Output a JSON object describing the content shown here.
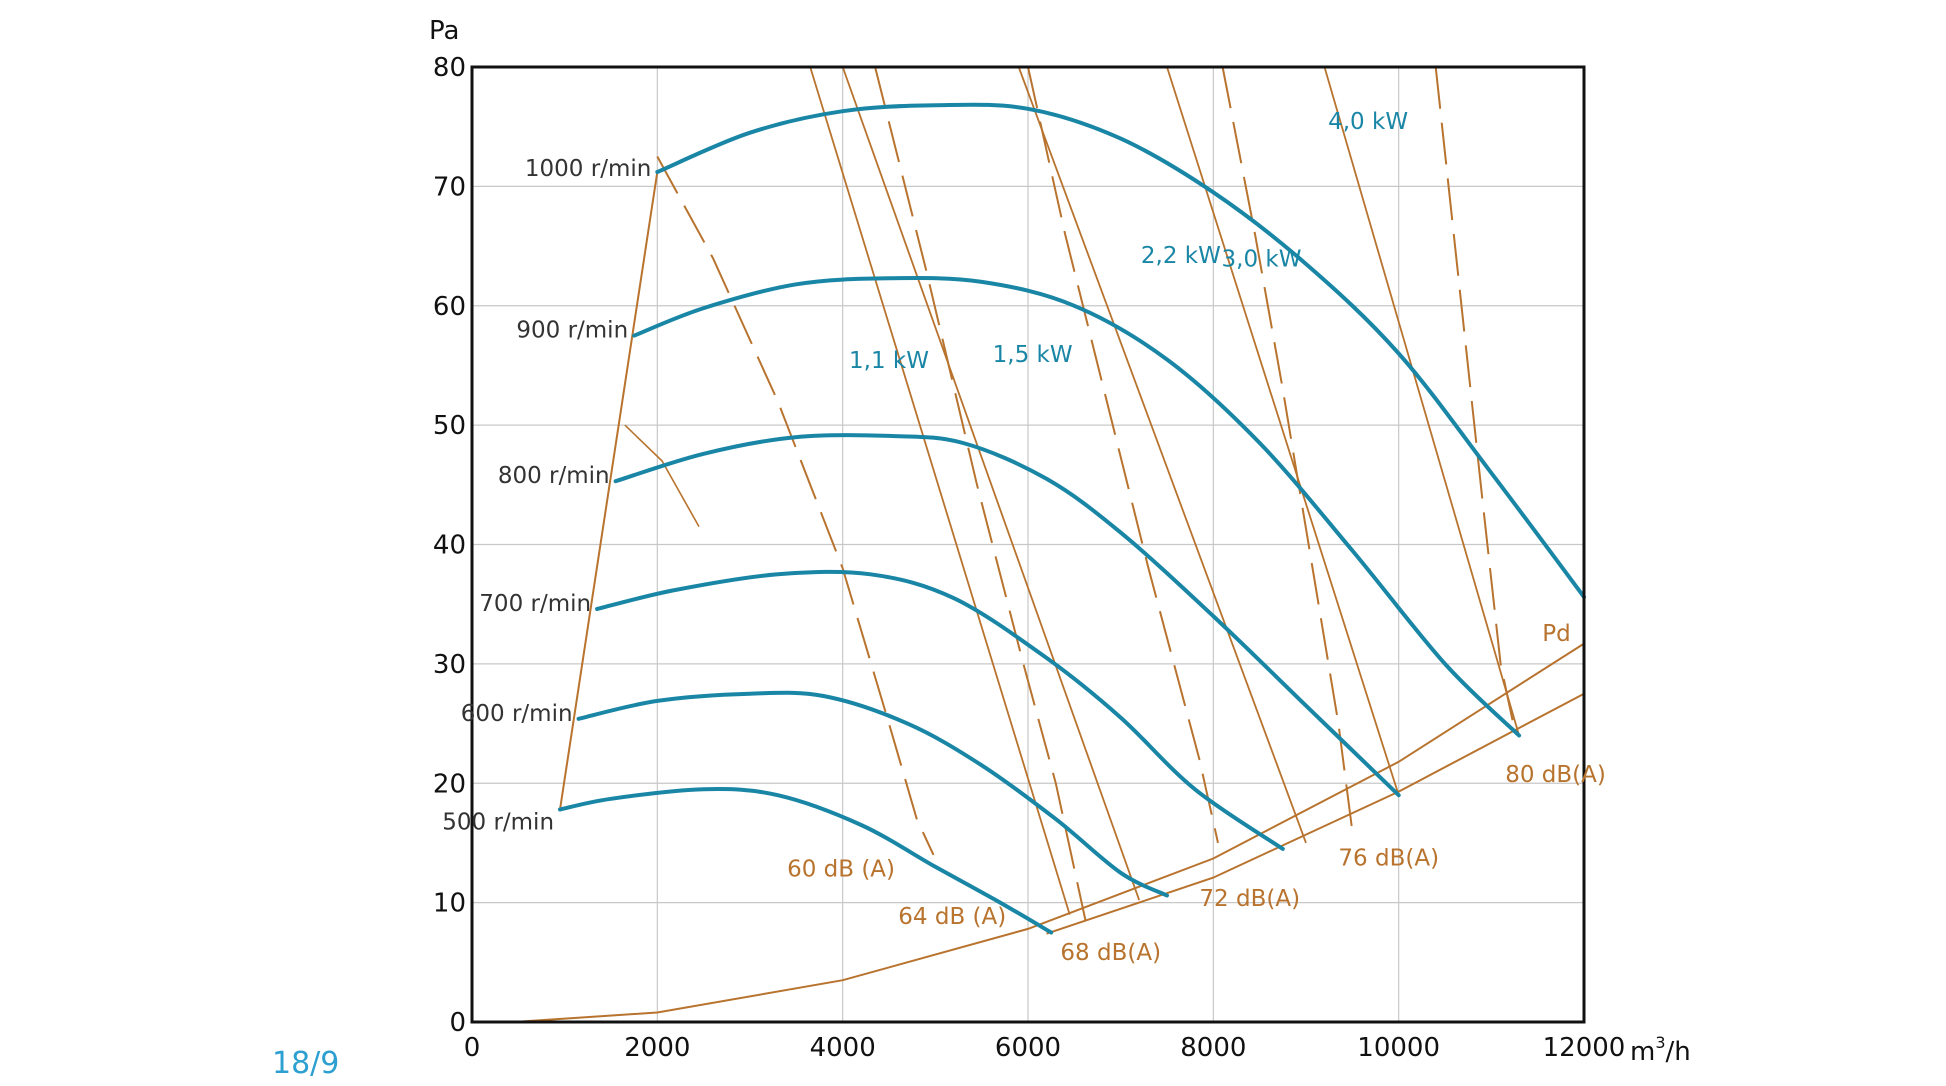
{
  "figure_label": "18/9",
  "chart_data": {
    "type": "line",
    "title": "",
    "xlabel": "m³/h",
    "ylabel": "Pa",
    "xlim": [
      0,
      12000
    ],
    "ylim": [
      0,
      80
    ],
    "x_ticks": [
      0,
      2000,
      4000,
      6000,
      8000,
      10000,
      12000
    ],
    "y_ticks": [
      0,
      10,
      20,
      30,
      40,
      50,
      60,
      70,
      80
    ],
    "grid": true,
    "colors": {
      "fan_curve": "#1a86a6",
      "aux_curve": "#b8732e",
      "grid": "#c8c8c8",
      "frame": "#111111"
    },
    "fan_curves": [
      {
        "name": "1000 r/min",
        "points": [
          [
            2000,
            71.2
          ],
          [
            3000,
            74.5
          ],
          [
            4000,
            76.3
          ],
          [
            5000,
            76.8
          ],
          [
            6000,
            76.5
          ],
          [
            7000,
            74
          ],
          [
            8000,
            69.5
          ],
          [
            9000,
            63.5
          ],
          [
            10000,
            56
          ],
          [
            11000,
            46
          ],
          [
            12000,
            35.6
          ]
        ]
      },
      {
        "name": "900 r/min",
        "points": [
          [
            1750,
            57.5
          ],
          [
            2500,
            59.8
          ],
          [
            3500,
            61.8
          ],
          [
            4500,
            62.3
          ],
          [
            5500,
            62
          ],
          [
            6500,
            60
          ],
          [
            7500,
            55.5
          ],
          [
            8500,
            48.5
          ],
          [
            9500,
            39.5
          ],
          [
            10500,
            30
          ],
          [
            11300,
            24
          ]
        ]
      },
      {
        "name": "800 r/min",
        "points": [
          [
            1550,
            45.3
          ],
          [
            2500,
            47.6
          ],
          [
            3500,
            49
          ],
          [
            4500,
            49.1
          ],
          [
            5300,
            48.5
          ],
          [
            6200,
            45.5
          ],
          [
            7000,
            41
          ],
          [
            8000,
            34
          ],
          [
            9000,
            26.5
          ],
          [
            10000,
            19
          ]
        ]
      },
      {
        "name": "700 r/min",
        "points": [
          [
            1350,
            34.6
          ],
          [
            2200,
            36.2
          ],
          [
            3300,
            37.5
          ],
          [
            4300,
            37.5
          ],
          [
            5200,
            35.5
          ],
          [
            6200,
            30.5
          ],
          [
            7000,
            25.5
          ],
          [
            7800,
            19.5
          ],
          [
            8750,
            14.5
          ]
        ]
      },
      {
        "name": "600 r/min",
        "points": [
          [
            1150,
            25.4
          ],
          [
            2000,
            26.9
          ],
          [
            3000,
            27.5
          ],
          [
            3800,
            27.3
          ],
          [
            4700,
            25
          ],
          [
            5500,
            21.5
          ],
          [
            6300,
            17
          ],
          [
            7000,
            12.5
          ],
          [
            7500,
            10.6
          ]
        ]
      },
      {
        "name": "500 r/min",
        "points": [
          [
            950,
            17.8
          ],
          [
            1500,
            18.7
          ],
          [
            2500,
            19.5
          ],
          [
            3300,
            19
          ],
          [
            4200,
            16.5
          ],
          [
            5000,
            13
          ],
          [
            5700,
            10
          ],
          [
            6250,
            7.5
          ]
        ]
      }
    ],
    "power_lines": [
      {
        "name": "1,1 kW",
        "points": [
          [
            3650,
            80
          ],
          [
            6450,
            9
          ]
        ],
        "label_at": [
          4500,
          54.8
        ]
      },
      {
        "name": "1,5 kW",
        "points": [
          [
            4000,
            80
          ],
          [
            7200,
            10.2
          ]
        ],
        "label_at": [
          6050,
          55.3
        ]
      },
      {
        "name": "2,2 kW",
        "points": [
          [
            5900,
            80
          ],
          [
            9000,
            15
          ]
        ],
        "label_at": [
          7650,
          63.6
        ]
      },
      {
        "name": "3,0 kW",
        "points": [
          [
            7500,
            80
          ],
          [
            10000,
            19
          ]
        ],
        "label_at": [
          8520,
          63.3
        ]
      },
      {
        "name": "4,0 kW",
        "points": [
          [
            9200,
            80
          ],
          [
            11300,
            24
          ]
        ],
        "label_at": [
          9670,
          74.8
        ]
      }
    ],
    "sound_lines": [
      {
        "name": "60 dB (A)",
        "points": [
          [
            2000,
            72.5
          ],
          [
            2600,
            64
          ],
          [
            3300,
            52
          ],
          [
            4000,
            38
          ],
          [
            4500,
            25
          ],
          [
            4800,
            17
          ],
          [
            4980,
            14
          ]
        ],
        "label_at": [
          3400,
          12.2
        ]
      },
      {
        "name": "64 dB (A)",
        "points": [
          [
            4350,
            80
          ],
          [
            4900,
            63
          ],
          [
            5450,
            45
          ],
          [
            5950,
            30
          ],
          [
            6300,
            20
          ],
          [
            6620,
            8.5
          ]
        ],
        "label_at": [
          4600,
          8.2
        ]
      },
      {
        "name": "68 dB(A)",
        "points": [
          [
            6000,
            80
          ],
          [
            6400,
            66
          ],
          [
            6850,
            52
          ],
          [
            7300,
            38
          ],
          [
            7850,
            22
          ],
          [
            8050,
            15
          ]
        ],
        "label_at": [
          6350,
          5.2
        ]
      },
      {
        "name": "72 dB(A)",
        "points": [
          [
            8100,
            80
          ],
          [
            8450,
            66
          ],
          [
            8750,
            53
          ],
          [
            9050,
            39
          ],
          [
            9350,
            25
          ],
          [
            9500,
            16
          ]
        ],
        "label_at": [
          7850,
          9.7
        ]
      },
      {
        "name": "76 dB(A)",
        "points": [
          [
            10400,
            80
          ],
          [
            10650,
            62
          ],
          [
            10900,
            44
          ],
          [
            11100,
            30
          ],
          [
            11250,
            24.5
          ]
        ],
        "label_at": [
          9350,
          13.1
        ]
      },
      {
        "name": "80 dB(A)",
        "points": [],
        "label_at": [
          11150,
          20.1
        ]
      }
    ],
    "pd_curves": [
      {
        "name": "Pd",
        "points": [
          [
            450,
            0
          ],
          [
            2000,
            0.8
          ],
          [
            4000,
            3.5
          ],
          [
            6000,
            7.8
          ],
          [
            8000,
            13.7
          ],
          [
            10000,
            21.8
          ],
          [
            12000,
            31.7
          ]
        ],
        "label_at": [
          11550,
          31.9
        ]
      },
      {
        "name": "",
        "points": [
          [
            6200,
            7.4
          ],
          [
            8000,
            12.1
          ],
          [
            10000,
            19.3
          ],
          [
            12000,
            27.5
          ]
        ]
      }
    ],
    "boundary_line": {
      "points": [
        [
          950,
          17.8
        ],
        [
          2000,
          71.2
        ]
      ]
    },
    "sound_brackets": [
      {
        "points": [
          [
            1650,
            50
          ],
          [
            2050,
            47
          ],
          [
            2450,
            41.5
          ]
        ]
      }
    ]
  }
}
